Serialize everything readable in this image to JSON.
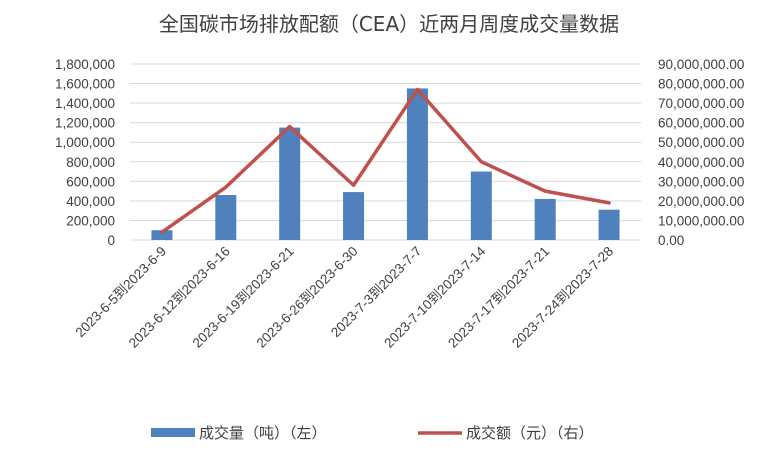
{
  "chart_data": {
    "type": "bar+line",
    "title": "全国碳市场排放配额（CEA）近两月周度成交量数据",
    "categories": [
      "2023-6-5到2023-6-9",
      "2023-6-12到2023-6-16",
      "2023-6-19到2023-6-21",
      "2023-6-26到2023-6-30",
      "2023-7-3到2023-7-7",
      "2023-7-10到2023-7-14",
      "2023-7-17到2023-7-21",
      "2023-7-24到2023-7-28"
    ],
    "series": [
      {
        "name": "成交量（吨）（左）",
        "type": "bar",
        "axis": "left",
        "color": "#4f81bd",
        "values": [
          100000,
          460000,
          1150000,
          490000,
          1550000,
          700000,
          420000,
          310000
        ]
      },
      {
        "name": "成交额（元）（右）",
        "type": "line",
        "axis": "right",
        "color": "#c0504d",
        "values": [
          4000000,
          27000000,
          58000000,
          28000000,
          77000000,
          40000000,
          25000000,
          19000000
        ]
      }
    ],
    "y_left": {
      "min": 0,
      "max": 1800000,
      "ticks": [
        "0",
        "200,000",
        "400,000",
        "600,000",
        "800,000",
        "1,000,000",
        "1,200,000",
        "1,400,000",
        "1,600,000",
        "1,800,000"
      ]
    },
    "y_right": {
      "min": 0,
      "max": 90000000,
      "ticks": [
        "0.00",
        "10,000,000.00",
        "20,000,000.00",
        "30,000,000.00",
        "40,000,000.00",
        "50,000,000.00",
        "60,000,000.00",
        "70,000,000.00",
        "80,000,000.00",
        "90,000,000.00"
      ]
    },
    "grid": true,
    "legend_position": "bottom"
  }
}
